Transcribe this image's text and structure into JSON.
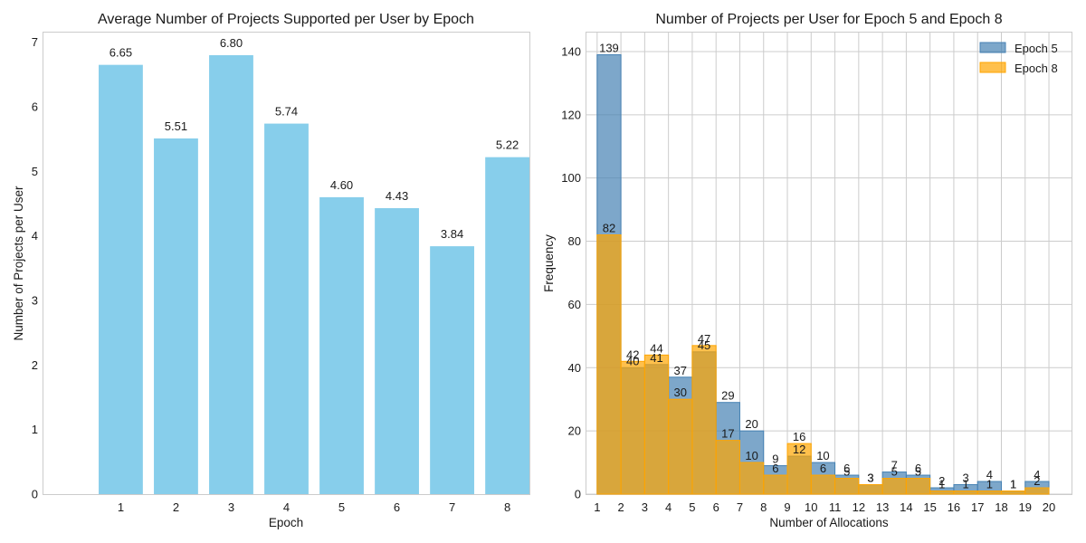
{
  "chart_data": [
    {
      "type": "bar",
      "title": "Average Number of Projects Supported per User by Epoch",
      "xlabel": "Epoch",
      "ylabel": "Number of Projects per User",
      "categories": [
        "1",
        "2",
        "3",
        "4",
        "5",
        "6",
        "7",
        "8"
      ],
      "values": [
        6.65,
        5.51,
        6.8,
        5.74,
        4.6,
        4.43,
        3.84,
        5.22
      ],
      "value_labels": [
        "6.65",
        "5.51",
        "6.80",
        "5.74",
        "4.60",
        "4.43",
        "3.84",
        "5.22"
      ],
      "ylim": [
        0,
        7.15
      ],
      "yticks": [
        0,
        1,
        2,
        3,
        4,
        5,
        6,
        7
      ],
      "color": "#87ceeb",
      "grid": false
    },
    {
      "type": "histogram",
      "title": "Number of Projects per User for Epoch 5 and Epoch 8",
      "xlabel": "Number of Allocations",
      "ylabel": "Frequency",
      "bin_edges": [
        1,
        2,
        3,
        4,
        5,
        6,
        7,
        8,
        9,
        10,
        11,
        12,
        13,
        14,
        15,
        16,
        17,
        18,
        19,
        20
      ],
      "xticks": [
        1,
        2,
        3,
        4,
        5,
        6,
        7,
        8,
        9,
        10,
        11,
        12,
        13,
        14,
        15,
        16,
        17,
        18,
        19,
        20
      ],
      "xlim": [
        0.55,
        20.95
      ],
      "yticks": [
        0,
        20,
        40,
        60,
        80,
        100,
        120,
        140
      ],
      "ylim": [
        0,
        146
      ],
      "legend_position": "upper right",
      "grid": true,
      "series": [
        {
          "name": "Epoch 5",
          "color": "#4682b4",
          "values": [
            139,
            40,
            41,
            37,
            45,
            29,
            20,
            9,
            12,
            10,
            6,
            3,
            7,
            6,
            2,
            3,
            4,
            1,
            4
          ],
          "value_labels": [
            "139",
            "40",
            "41",
            "37",
            "45",
            "29",
            "20",
            "9",
            "12",
            "10",
            "6",
            "3",
            "7",
            "6",
            "2",
            "3",
            "4",
            "1",
            "4"
          ]
        },
        {
          "name": "Epoch 8",
          "color": "#ffa500",
          "values": [
            82,
            42,
            44,
            30,
            47,
            17,
            10,
            6,
            16,
            6,
            5,
            3,
            5,
            5,
            1,
            1,
            1,
            1,
            2
          ],
          "value_labels": [
            "82",
            "42",
            "44",
            "30",
            "47",
            "17",
            "10",
            "6",
            "16",
            "6",
            "5",
            "3",
            "5",
            "5",
            "1",
            "1",
            "1",
            "1",
            "2"
          ]
        }
      ]
    }
  ]
}
